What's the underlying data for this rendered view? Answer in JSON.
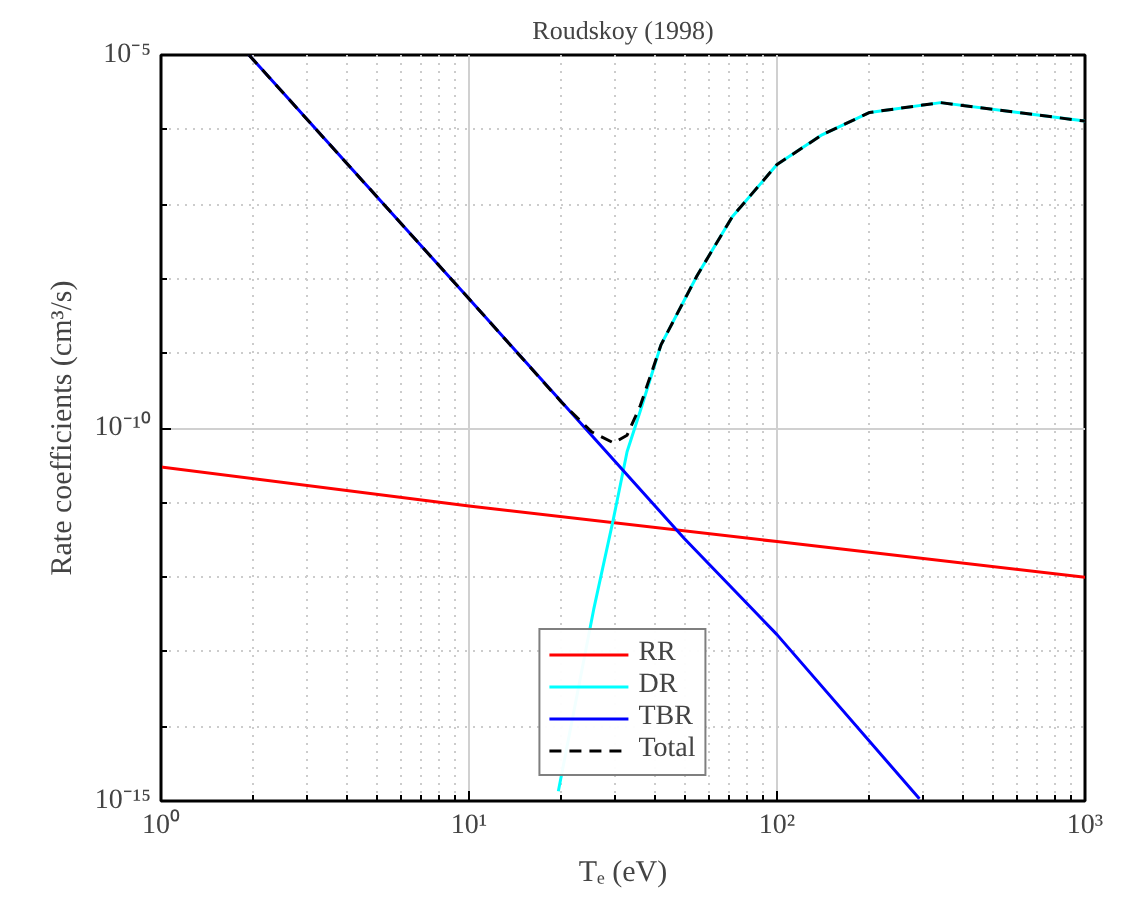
{
  "chart_data": {
    "type": "line",
    "title": "Roudskoy (1998)",
    "xlabel": "Tₑ (eV)",
    "ylabel": "Rate coefficients (cm³/s)",
    "log": "xy",
    "grid": true,
    "legend": "bottom",
    "xlim": [
      1,
      1000
    ],
    "ylim": [
      1e-15,
      1e-05
    ],
    "xticks": [
      {
        "value": 1,
        "label": "10⁰"
      },
      {
        "value": 10,
        "label": "10¹"
      },
      {
        "value": 100,
        "label": "10²"
      },
      {
        "value": 1000,
        "label": "10³"
      }
    ],
    "yticks": [
      {
        "value": 1e-15,
        "label": "10⁻¹⁵"
      },
      {
        "value": 1e-10,
        "label": "10⁻¹⁰"
      },
      {
        "value": 1e-05,
        "label": "10⁻⁵"
      }
    ],
    "series": [
      {
        "name": "RR",
        "color": "#ff0000",
        "x": [
          1,
          10,
          100,
          1000
        ],
        "values": [
          3e-11,
          9e-12,
          3e-12,
          1e-12
        ]
      },
      {
        "name": "DR",
        "color": "#00ffff",
        "x": [
          19.5,
          25.4,
          29.4,
          32.6,
          36,
          42,
          55,
          71.6,
          100,
          140,
          200,
          340,
          1000
        ],
        "values": [
          1.35e-15,
          3.7e-13,
          5.9e-12,
          4.8e-11,
          1.7e-10,
          1.3e-09,
          1.1e-08,
          6.8e-08,
          3.4e-07,
          8.5e-07,
          1.7e-06,
          2.3e-06,
          1.3e-06
        ]
      },
      {
        "name": "TBR",
        "color": "#0000ff",
        "x": [
          1.93,
          10,
          50,
          100,
          290
        ],
        "values": [
          1e-05,
          5.4e-09,
          3.3e-12,
          1.7e-13,
          1.07e-15
        ]
      },
      {
        "name": "Total",
        "color": "#000000",
        "line_style": "dashed",
        "x": [
          1.93,
          10,
          20,
          25,
          29.5,
          32.6,
          36,
          42,
          55,
          71.6,
          100,
          140,
          200,
          340,
          1000
        ],
        "values": [
          1e-05,
          5.4e-09,
          2.2e-10,
          8.9e-11,
          6.3e-11,
          8e-11,
          2e-10,
          1.3e-09,
          1.1e-08,
          6.8e-08,
          3.4e-07,
          8.5e-07,
          1.7e-06,
          2.3e-06,
          1.3e-06
        ]
      }
    ]
  }
}
